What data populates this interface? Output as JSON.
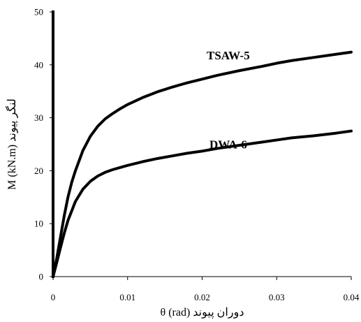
{
  "chart_data": {
    "type": "line",
    "xlabel": "θ (rad) دوران پیوند",
    "ylabel": "M (kN.m) لنگر پیوند",
    "xlim": [
      0,
      0.04
    ],
    "ylim": [
      0,
      50
    ],
    "x_ticks": [
      "0",
      "0.01",
      "0.02",
      "0.03",
      "0.04"
    ],
    "y_ticks": [
      "0",
      "10",
      "20",
      "30",
      "40",
      "50"
    ],
    "grid": false,
    "legend": "none",
    "series": [
      {
        "name": "TSAW-5",
        "color": "#000000",
        "x": [
          0,
          0.0005,
          0.001,
          0.0015,
          0.002,
          0.0025,
          0.003,
          0.004,
          0.005,
          0.006,
          0.007,
          0.008,
          0.009,
          0.01,
          0.012,
          0.014,
          0.016,
          0.018,
          0.02,
          0.022,
          0.025,
          0.028,
          0.03,
          0.032,
          0.035,
          0.038,
          0.04
        ],
        "y": [
          0,
          3.5,
          7.5,
          11.5,
          15.0,
          17.8,
          20.0,
          23.8,
          26.5,
          28.4,
          29.8,
          30.8,
          31.7,
          32.5,
          33.8,
          34.9,
          35.8,
          36.6,
          37.3,
          38.0,
          38.9,
          39.7,
          40.3,
          40.8,
          41.4,
          42.0,
          42.4
        ]
      },
      {
        "name": "DWA-6",
        "color": "#000000",
        "x": [
          0,
          0.0005,
          0.001,
          0.0015,
          0.002,
          0.003,
          0.004,
          0.005,
          0.006,
          0.007,
          0.008,
          0.009,
          0.01,
          0.012,
          0.014,
          0.016,
          0.018,
          0.02,
          0.022,
          0.025,
          0.028,
          0.03,
          0.032,
          0.035,
          0.038,
          0.04
        ],
        "y": [
          0,
          2.7,
          5.5,
          8.2,
          10.6,
          14.2,
          16.5,
          18.0,
          19.0,
          19.7,
          20.2,
          20.6,
          21.0,
          21.7,
          22.3,
          22.8,
          23.3,
          23.7,
          24.2,
          24.8,
          25.4,
          25.8,
          26.2,
          26.6,
          27.1,
          27.5
        ]
      }
    ]
  }
}
